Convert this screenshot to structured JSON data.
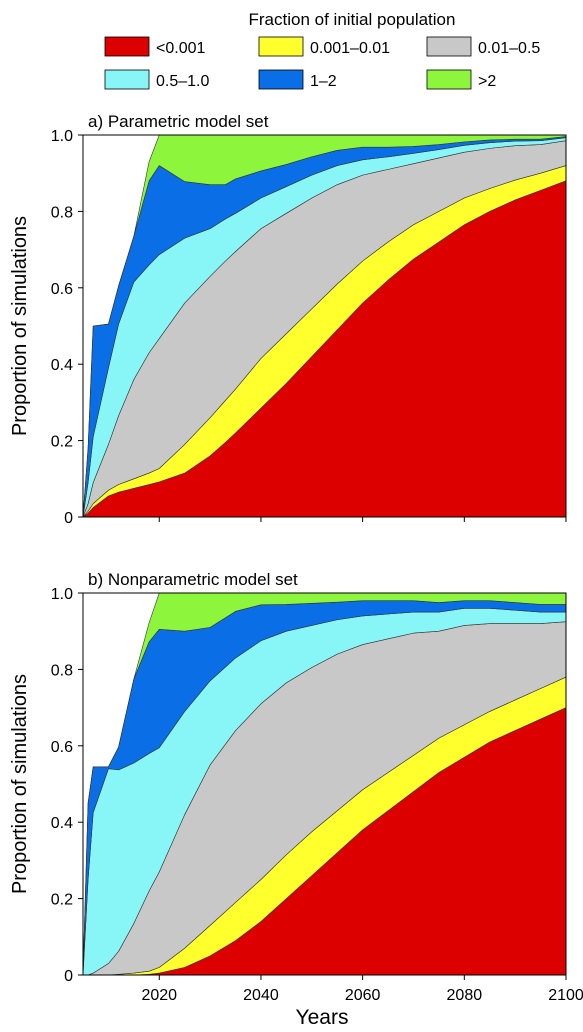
{
  "legend": {
    "title": "Fraction of initial population",
    "items": [
      {
        "label": "<0.001",
        "color": "#dd0000"
      },
      {
        "label": "0.001–0.01",
        "color": "#ffff2e"
      },
      {
        "label": "0.01–0.5",
        "color": "#c8c8c8"
      },
      {
        "label": "0.5–1.0",
        "color": "#88f6f6"
      },
      {
        "label": "1–2",
        "color": "#0a6ee6"
      },
      {
        "label": ">2",
        "color": "#8cf53c"
      }
    ]
  },
  "x_axis_label": "Years",
  "chart_data": [
    {
      "type": "area",
      "title": "a) Parametric model set",
      "ylabel": "Proportion of simulations",
      "xlim": [
        2005,
        2100
      ],
      "ylim": [
        0,
        1
      ],
      "xticks": [
        2020,
        2040,
        2060,
        2080,
        2100
      ],
      "yticks": [
        0,
        0.2,
        0.4,
        0.6,
        0.8,
        1.0
      ],
      "x": [
        2005,
        2006,
        2007,
        2010,
        2012,
        2015,
        2018,
        2020,
        2025,
        2030,
        2033,
        2035,
        2040,
        2045,
        2050,
        2055,
        2060,
        2065,
        2070,
        2075,
        2080,
        2085,
        2090,
        2095,
        2100
      ],
      "series": [
        {
          "name": "<0.001",
          "values": [
            0,
            0.01,
            0.025,
            0.055,
            0.065,
            0.075,
            0.085,
            0.092,
            0.115,
            0.16,
            0.195,
            0.22,
            0.285,
            0.35,
            0.42,
            0.49,
            0.56,
            0.62,
            0.675,
            0.72,
            0.765,
            0.8,
            0.83,
            0.855,
            0.88
          ]
        },
        {
          "name": "0.001–0.01",
          "values": [
            0,
            0.005,
            0.01,
            0.015,
            0.02,
            0.025,
            0.03,
            0.035,
            0.075,
            0.1,
            0.11,
            0.115,
            0.13,
            0.13,
            0.125,
            0.12,
            0.11,
            0.1,
            0.09,
            0.08,
            0.07,
            0.06,
            0.052,
            0.045,
            0.04
          ]
        },
        {
          "name": "0.01–0.5",
          "values": [
            0,
            0.02,
            0.055,
            0.12,
            0.18,
            0.26,
            0.315,
            0.34,
            0.37,
            0.37,
            0.365,
            0.36,
            0.34,
            0.315,
            0.29,
            0.26,
            0.225,
            0.19,
            0.16,
            0.14,
            0.12,
            0.105,
            0.09,
            0.075,
            0.065
          ]
        },
        {
          "name": "0.5–1.0",
          "values": [
            0,
            0.055,
            0.12,
            0.2,
            0.24,
            0.255,
            0.23,
            0.22,
            0.17,
            0.125,
            0.11,
            0.1,
            0.08,
            0.07,
            0.06,
            0.05,
            0.04,
            0.033,
            0.027,
            0.022,
            0.018,
            0.015,
            0.012,
            0.01,
            0.008
          ]
        },
        {
          "name": "1–2",
          "values": [
            0,
            0.09,
            0.29,
            0.115,
            0.1,
            0.12,
            0.22,
            0.233,
            0.148,
            0.115,
            0.09,
            0.09,
            0.071,
            0.058,
            0.048,
            0.04,
            0.033,
            0.025,
            0.018,
            0.013,
            0.009,
            0.007,
            0.005,
            0.004,
            0.003
          ]
        },
        {
          "name": ">2",
          "values": [
            0,
            0,
            0,
            0,
            0,
            0,
            0.05,
            0.08,
            0.122,
            0.13,
            0.13,
            0.115,
            0.094,
            0.077,
            0.057,
            0.04,
            0.032,
            0.032,
            0.03,
            0.025,
            0.018,
            0.013,
            0.011,
            0.011,
            0.004
          ]
        }
      ]
    },
    {
      "type": "area",
      "title": "b) Nonparametric model set",
      "ylabel": "Proportion of simulations",
      "xlim": [
        2005,
        2100
      ],
      "ylim": [
        0,
        1
      ],
      "xticks": [
        2020,
        2040,
        2060,
        2080,
        2100
      ],
      "yticks": [
        0,
        0.2,
        0.4,
        0.6,
        0.8,
        1.0
      ],
      "x": [
        2005,
        2006,
        2007,
        2010,
        2012,
        2015,
        2018,
        2020,
        2025,
        2030,
        2035,
        2040,
        2045,
        2050,
        2055,
        2060,
        2065,
        2070,
        2075,
        2080,
        2085,
        2090,
        2095,
        2100
      ],
      "series": [
        {
          "name": "<0.001",
          "values": [
            0,
            0,
            0,
            0,
            0,
            0,
            0.002,
            0.005,
            0.02,
            0.05,
            0.09,
            0.14,
            0.2,
            0.26,
            0.32,
            0.38,
            0.43,
            0.48,
            0.53,
            0.57,
            0.61,
            0.64,
            0.67,
            0.7
          ]
        },
        {
          "name": "0.001–0.01",
          "values": [
            0,
            0,
            0,
            0,
            0.002,
            0.005,
            0.008,
            0.015,
            0.05,
            0.08,
            0.1,
            0.11,
            0.115,
            0.115,
            0.11,
            0.105,
            0.1,
            0.095,
            0.09,
            0.085,
            0.08,
            0.08,
            0.08,
            0.08
          ]
        },
        {
          "name": "0.01–0.5",
          "values": [
            0,
            0,
            0.005,
            0.03,
            0.06,
            0.13,
            0.21,
            0.25,
            0.35,
            0.42,
            0.45,
            0.46,
            0.45,
            0.43,
            0.41,
            0.38,
            0.35,
            0.32,
            0.28,
            0.26,
            0.23,
            0.2,
            0.17,
            0.145
          ]
        },
        {
          "name": "0.5–1.0",
          "values": [
            0,
            0.25,
            0.42,
            0.51,
            0.475,
            0.42,
            0.36,
            0.325,
            0.27,
            0.22,
            0.19,
            0.165,
            0.135,
            0.11,
            0.09,
            0.075,
            0.065,
            0.055,
            0.05,
            0.045,
            0.04,
            0.035,
            0.03,
            0.025
          ]
        },
        {
          "name": "1–2",
          "values": [
            0,
            0.2,
            0.12,
            0.005,
            0.06,
            0.22,
            0.292,
            0.31,
            0.21,
            0.14,
            0.122,
            0.094,
            0.07,
            0.058,
            0.046,
            0.04,
            0.035,
            0.03,
            0.025,
            0.02,
            0.02,
            0.02,
            0.02,
            0.02
          ]
        },
        {
          "name": ">2",
          "values": [
            0,
            0,
            0,
            0,
            0,
            0,
            0.05,
            0.095,
            0.1,
            0.11,
            0.118,
            0.091,
            0.073,
            0.063,
            0.06,
            0.055,
            0.05,
            0.045,
            0.045,
            0.045,
            0.04,
            0.035,
            0.035,
            0.03
          ]
        }
      ]
    }
  ]
}
